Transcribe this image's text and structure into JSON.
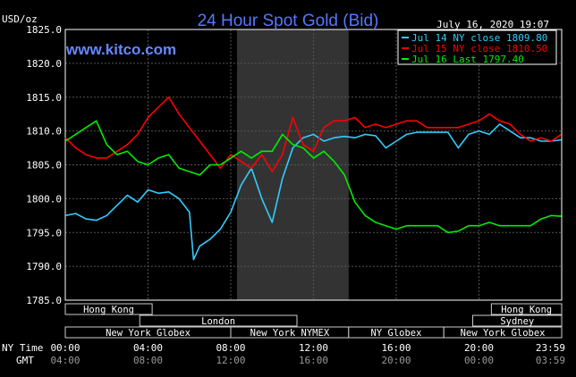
{
  "chart_data": {
    "type": "line",
    "title": "24 Hour Spot Gold (Bid)",
    "watermark": "www.kitco.com",
    "units": "USD/oz",
    "date": "July 16, 2020 19:07",
    "ylim": [
      1785.0,
      1825.0
    ],
    "yticks": [
      "1825.0",
      "1820.0",
      "1815.0",
      "1810.0",
      "1805.0",
      "1800.0",
      "1795.0",
      "1790.0",
      "1785.0"
    ],
    "xlim": [
      0,
      24
    ],
    "xticks_ny": [
      "00:00",
      "04:00",
      "08:00",
      "12:00",
      "16:00",
      "20:00",
      "23:59"
    ],
    "xticks_gmt": [
      "04:00",
      "08:00",
      "12:00",
      "16:00",
      "20:00",
      "00:00",
      "03:59"
    ],
    "row_label_ny": "NY Time",
    "row_label_gmt": "GMT",
    "ny_session_shade": [
      8.3,
      13.7
    ],
    "grid": true,
    "legend_position": "top-right",
    "legend": [
      {
        "label": "Jul 14 NY close 1809.80",
        "color": "#33ccff"
      },
      {
        "label": "Jul 15 NY close 1810.50",
        "color": "#ff0000"
      },
      {
        "label": "Jul 16 Last 1797.40",
        "color": "#00ee00"
      }
    ],
    "series": [
      {
        "color": "#33ccff",
        "x": [
          0,
          0.5,
          1,
          1.5,
          2,
          2.5,
          3,
          3.5,
          4,
          4.5,
          5,
          5.5,
          6,
          6.2,
          6.5,
          7,
          7.5,
          8,
          8.5,
          9,
          9.5,
          10,
          10.5,
          11,
          11.5,
          12,
          12.5,
          13,
          13.5,
          14,
          14.5,
          15,
          15.5,
          16,
          16.5,
          17,
          17.5,
          18,
          18.5,
          19,
          19.5,
          20,
          20.5,
          21,
          21.5,
          22,
          22.5,
          23,
          23.5,
          23.98
        ],
        "y": [
          1797.5,
          1797.8,
          1797.0,
          1796.8,
          1797.5,
          1799.0,
          1800.5,
          1799.5,
          1801.3,
          1800.8,
          1801.0,
          1800.0,
          1798.0,
          1791.0,
          1793.0,
          1794.0,
          1795.5,
          1798.0,
          1802.0,
          1804.5,
          1800.0,
          1796.5,
          1803.0,
          1807.5,
          1809.0,
          1809.5,
          1808.5,
          1809.0,
          1809.2,
          1809.0,
          1809.5,
          1809.3,
          1807.5,
          1808.5,
          1809.5,
          1809.8,
          1809.8,
          1809.8,
          1809.8,
          1807.5,
          1809.5,
          1810.0,
          1809.5,
          1811.0,
          1810.0,
          1809.0,
          1809.0,
          1808.5,
          1808.5,
          1808.7
        ]
      },
      {
        "color": "#ff0000",
        "x": [
          0,
          0.5,
          1,
          1.5,
          2,
          2.5,
          3,
          3.5,
          4,
          4.5,
          5,
          5.5,
          6,
          6.5,
          7,
          7.5,
          8,
          8.5,
          9,
          9.5,
          10,
          10.5,
          11,
          11.5,
          12,
          12.5,
          13,
          13.5,
          14,
          14.5,
          15,
          15.5,
          16,
          16.5,
          17,
          17.5,
          18,
          18.5,
          19,
          19.5,
          20,
          20.5,
          21,
          21.5,
          22,
          22.5,
          23,
          23.5,
          23.98
        ],
        "y": [
          1809.0,
          1807.5,
          1806.5,
          1806.0,
          1806.0,
          1807.0,
          1808.0,
          1809.5,
          1812.0,
          1813.5,
          1815.0,
          1812.5,
          1810.5,
          1808.5,
          1806.5,
          1804.5,
          1806.5,
          1805.5,
          1804.5,
          1806.5,
          1804.0,
          1806.5,
          1812.0,
          1808.0,
          1807.0,
          1810.5,
          1811.5,
          1811.5,
          1812.0,
          1810.5,
          1811.0,
          1810.5,
          1811.0,
          1811.5,
          1811.5,
          1810.5,
          1810.5,
          1810.5,
          1810.5,
          1811.0,
          1811.5,
          1812.5,
          1811.5,
          1811.0,
          1809.5,
          1808.5,
          1809.0,
          1808.5,
          1809.5
        ]
      },
      {
        "color": "#00ee00",
        "x": [
          0,
          0.5,
          1,
          1.5,
          2,
          2.5,
          3,
          3.5,
          4,
          4.5,
          5,
          5.5,
          6,
          6.5,
          7,
          7.5,
          8,
          8.5,
          9,
          9.5,
          10,
          10.5,
          11,
          11.5,
          12,
          12.5,
          13,
          13.5,
          14,
          14.5,
          15,
          15.5,
          16,
          16.5,
          17,
          17.5,
          18,
          18.5,
          19,
          19.5,
          20,
          20.5,
          21,
          21.5,
          22,
          22.5,
          23,
          23.5,
          23.98
        ],
        "y": [
          1808.5,
          1809.5,
          1810.5,
          1811.5,
          1808.0,
          1806.5,
          1807.0,
          1805.5,
          1805.0,
          1806.0,
          1806.5,
          1804.5,
          1804.0,
          1803.5,
          1805.0,
          1805.0,
          1806.0,
          1807.0,
          1806.0,
          1807.0,
          1807.0,
          1809.5,
          1808.0,
          1807.5,
          1806.0,
          1807.0,
          1805.5,
          1803.5,
          1799.5,
          1797.5,
          1796.5,
          1796.0,
          1795.5,
          1796.0,
          1796.0,
          1796.0,
          1796.0,
          1795.0,
          1795.2,
          1796.0,
          1796.0,
          1796.5,
          1796.0,
          1796.0,
          1796.0,
          1796.0,
          1797.0,
          1797.5,
          1797.4
        ]
      }
    ],
    "markets": {
      "row1": [
        {
          "label": "Hong Kong",
          "start": 0,
          "end": 4.2
        },
        {
          "label": "Hong Kong",
          "start": 20.6,
          "end": 24
        }
      ],
      "row2": [
        {
          "label": "London",
          "start": 3.6,
          "end": 11.2
        },
        {
          "label": "Sydney",
          "start": 19.7,
          "end": 24
        }
      ],
      "row3": [
        {
          "label": "New York Globex",
          "start": 0,
          "end": 8.0
        },
        {
          "label": "New York NYMEX",
          "start": 8.0,
          "end": 13.7
        },
        {
          "label": "NY Globex",
          "start": 13.7,
          "end": 18.3
        },
        {
          "label": "New York Globex",
          "start": 18.3,
          "end": 24
        }
      ]
    }
  }
}
